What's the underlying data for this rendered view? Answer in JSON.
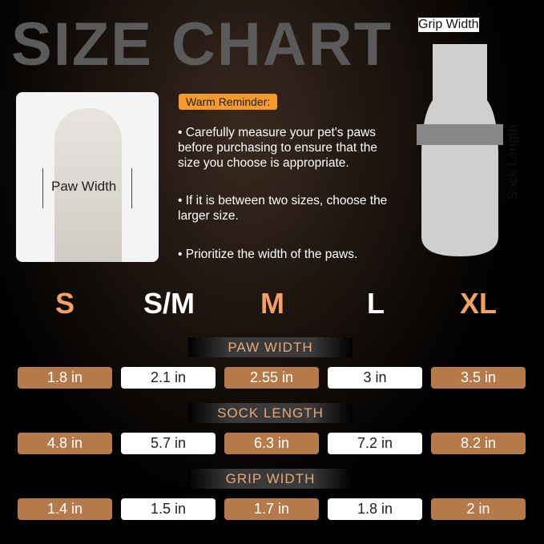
{
  "title": "SIZE CHART",
  "paw_label": "Paw Width",
  "reminder": {
    "label": "Warm Reminder:",
    "bullets": [
      "Carefully measure your pet's paws before purchasing to ensure that the size you choose is appropriate.",
      "If it is between two sizes, choose the larger size.",
      "Prioritize the width of the paws."
    ]
  },
  "sock": {
    "grip_width_label": "Grip Width",
    "sock_length_label": "Sock Length"
  },
  "sizes": [
    "S",
    "S/M",
    "M",
    "L",
    "XL"
  ],
  "colors": {
    "accent": "#f3a066",
    "cell_brown": "#b57a4a",
    "reminder": "#f39a2b"
  },
  "table": [
    {
      "header": "PAW WIDTH",
      "values": [
        "1.8 in",
        "2.1 in",
        "2.55 in",
        "3 in",
        "3.5 in"
      ]
    },
    {
      "header": "SOCK LENGTH",
      "values": [
        "4.8 in",
        "5.7 in",
        "6.3 in",
        "7.2 in",
        "8.2 in"
      ]
    },
    {
      "header": "GRIP WIDTH",
      "values": [
        "1.4 in",
        "1.5 in",
        "1.7 in",
        "1.8 in",
        "2 in"
      ]
    }
  ]
}
